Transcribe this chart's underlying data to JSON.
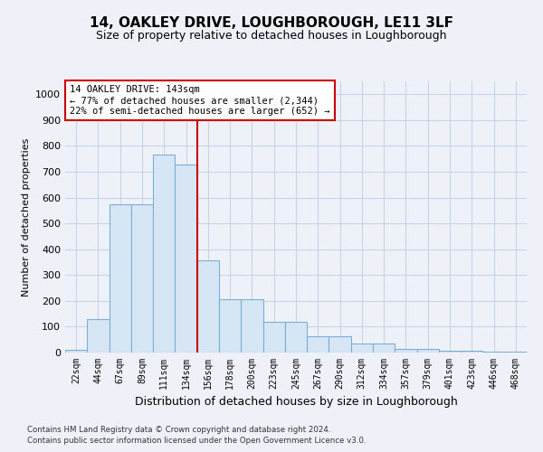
{
  "title": "14, OAKLEY DRIVE, LOUGHBOROUGH, LE11 3LF",
  "subtitle": "Size of property relative to detached houses in Loughborough",
  "xlabel": "Distribution of detached houses by size in Loughborough",
  "ylabel": "Number of detached properties",
  "categories": [
    "22sqm",
    "44sqm",
    "67sqm",
    "89sqm",
    "111sqm",
    "134sqm",
    "156sqm",
    "178sqm",
    "200sqm",
    "223sqm",
    "245sqm",
    "267sqm",
    "290sqm",
    "312sqm",
    "334sqm",
    "357sqm",
    "379sqm",
    "401sqm",
    "423sqm",
    "446sqm",
    "468sqm"
  ],
  "values": [
    10,
    128,
    575,
    575,
    765,
    728,
    358,
    207,
    207,
    118,
    118,
    63,
    63,
    35,
    35,
    13,
    13,
    7,
    7,
    5,
    5
  ],
  "bar_color": "#d6e6f5",
  "bar_edge_color": "#7bafd4",
  "line_color": "#cc0000",
  "annotation_text": "14 OAKLEY DRIVE: 143sqm\n← 77% of detached houses are smaller (2,344)\n22% of semi-detached houses are larger (652) →",
  "annotation_box_color": "#ffffff",
  "annotation_box_edge": "#cc0000",
  "background_color": "#eef2f8",
  "grid_color": "#c8d4e8",
  "footer1": "Contains HM Land Registry data © Crown copyright and database right 2024.",
  "footer2": "Contains public sector information licensed under the Open Government Licence v3.0.",
  "ylim": [
    0,
    1050
  ],
  "title_fontsize": 11,
  "subtitle_fontsize": 9
}
